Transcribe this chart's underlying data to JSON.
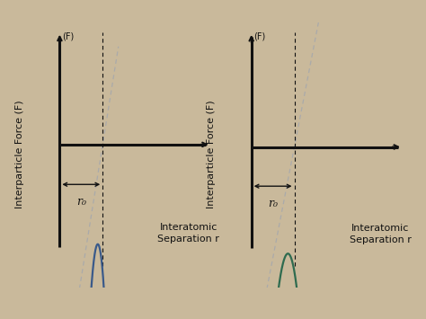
{
  "background_color": "#c9b99b",
  "left_curve_color": "#3a5a8a",
  "right_curve_color": "#2e6b4f",
  "tangent_color": "#aaaaaa",
  "axis_color": "#111111",
  "text_color": "#111111",
  "ylabel": "Interparticle Force (F)",
  "xlabel": "Interatomic\nSeparation r",
  "r0_label": "r₀",
  "font_size_label": 8,
  "font_size_r0": 9
}
